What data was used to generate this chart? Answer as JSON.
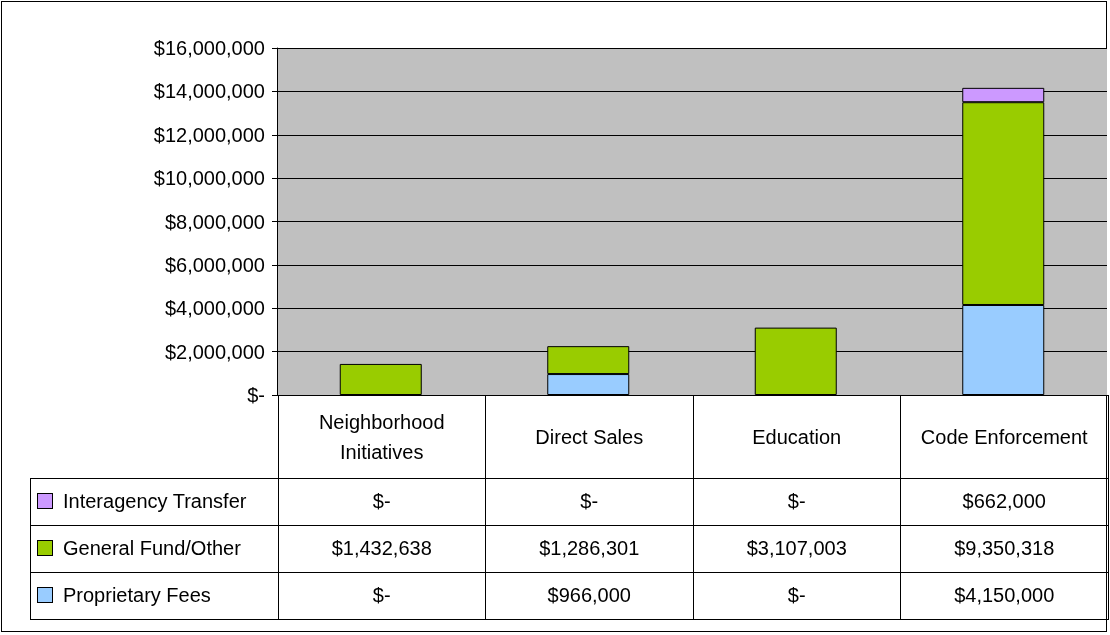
{
  "chart_data": {
    "type": "bar",
    "stacked": true,
    "categories": [
      "Neighborhood Initiatives",
      "Direct Sales",
      "Education",
      "Code Enforcement"
    ],
    "series": [
      {
        "name": "Proprietary Fees",
        "color": "#99ccff",
        "values": [
          0,
          966000,
          0,
          4150000
        ],
        "value_labels": [
          "$-",
          "$966,000",
          "$-",
          "$4,150,000"
        ]
      },
      {
        "name": "General Fund/Other",
        "color": "#99cc00",
        "values": [
          1432638,
          1286301,
          3107003,
          9350318
        ],
        "value_labels": [
          "$1,432,638",
          "$1,286,301",
          "$3,107,003",
          "$9,350,318"
        ]
      },
      {
        "name": "Interagency Transfer",
        "color": "#cc99ff",
        "values": [
          0,
          0,
          0,
          662000
        ],
        "value_labels": [
          "$-",
          "$-",
          "$-",
          "$662,000"
        ]
      }
    ],
    "ylim": [
      0,
      16000000
    ],
    "yticks": [
      {
        "value": 0,
        "label": "$-"
      },
      {
        "value": 2000000,
        "label": "$2,000,000"
      },
      {
        "value": 4000000,
        "label": "$4,000,000"
      },
      {
        "value": 6000000,
        "label": "$6,000,000"
      },
      {
        "value": 8000000,
        "label": "$8,000,000"
      },
      {
        "value": 10000000,
        "label": "$10,000,000"
      },
      {
        "value": 12000000,
        "label": "$12,000,000"
      },
      {
        "value": 14000000,
        "label": "$14,000,000"
      },
      {
        "value": 16000000,
        "label": "$16,000,000"
      }
    ],
    "grid": "y",
    "legend": "bottom"
  }
}
